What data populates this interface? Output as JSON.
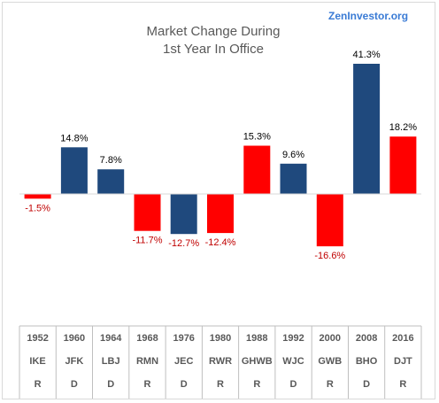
{
  "chart_data": {
    "type": "bar",
    "title": "Market Change During",
    "subtitle": "1st Year In Office",
    "watermark": "ZenInvestor.org",
    "categories": [
      "1952",
      "1960",
      "1964",
      "1968",
      "1976",
      "1980",
      "1988",
      "1992",
      "2000",
      "2008",
      "2016"
    ],
    "presidents": [
      "IKE",
      "JFK",
      "LBJ",
      "RMN",
      "JEC",
      "RWR",
      "GHWB",
      "WJC",
      "GWB",
      "BHO",
      "DJT"
    ],
    "parties": [
      "R",
      "D",
      "D",
      "R",
      "D",
      "R",
      "R",
      "D",
      "R",
      "D",
      "R"
    ],
    "values": [
      -1.5,
      14.8,
      7.8,
      -11.7,
      -12.7,
      -12.4,
      15.3,
      9.6,
      -16.6,
      41.3,
      18.2
    ],
    "value_labels": [
      "-1.5%",
      "14.8%",
      "7.8%",
      "-11.7%",
      "-12.7%",
      "-12.4%",
      "15.3%",
      "9.6%",
      "-16.6%",
      "41.3%",
      "18.2%"
    ],
    "ylim": [
      -20,
      45
    ],
    "grid": false,
    "legend": "none",
    "colors": {
      "R": "#ff0000",
      "D": "#1f497d",
      "positive_label": "#000000",
      "negative_label": "#c00000",
      "axis": "#d9d9d9",
      "table_line": "#bfbfbf"
    }
  }
}
